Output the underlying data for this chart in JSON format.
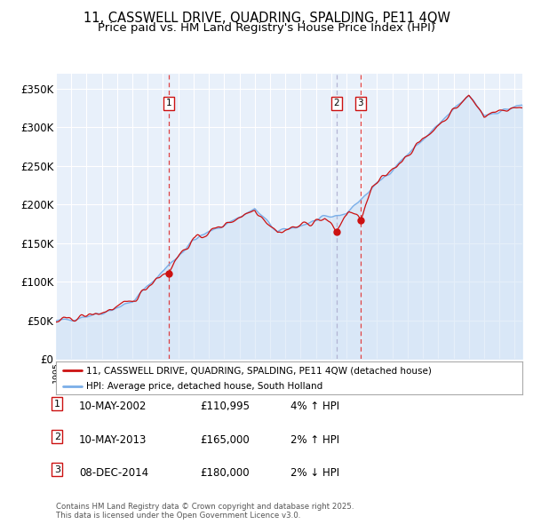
{
  "title": "11, CASSWELL DRIVE, QUADRING, SPALDING, PE11 4QW",
  "subtitle": "Price paid vs. HM Land Registry's House Price Index (HPI)",
  "ylabel_ticks": [
    "£0",
    "£50K",
    "£100K",
    "£150K",
    "£200K",
    "£250K",
    "£300K",
    "£350K"
  ],
  "ytick_values": [
    0,
    50000,
    100000,
    150000,
    200000,
    250000,
    300000,
    350000
  ],
  "ylim": [
    0,
    370000
  ],
  "xlim_start": 1995.0,
  "xlim_end": 2025.5,
  "sale_dates": [
    2002.37,
    2013.36,
    2014.92
  ],
  "sale_prices": [
    110995,
    165000,
    180000
  ],
  "sale_labels": [
    "1",
    "2",
    "3"
  ],
  "dashed_line_colors": [
    "#dd2222",
    "#aaaacc",
    "#dd2222"
  ],
  "dashed_line_styles": [
    "--",
    "--",
    "--"
  ],
  "hpi_line_color": "#7aaee8",
  "hpi_fill_color": "#cce0f5",
  "price_line_color": "#cc1111",
  "price_dot_color": "#cc1111",
  "plot_bg_color": "#e8f0fa",
  "legend_entries": [
    "11, CASSWELL DRIVE, QUADRING, SPALDING, PE11 4QW (detached house)",
    "HPI: Average price, detached house, South Holland"
  ],
  "table_rows": [
    {
      "label": "1",
      "date": "10-MAY-2002",
      "price": "£110,995",
      "change": "4% ↑ HPI"
    },
    {
      "label": "2",
      "date": "10-MAY-2013",
      "price": "£165,000",
      "change": "2% ↑ HPI"
    },
    {
      "label": "3",
      "date": "08-DEC-2014",
      "price": "£180,000",
      "change": "2% ↓ HPI"
    }
  ],
  "footnote": "Contains HM Land Registry data © Crown copyright and database right 2025.\nThis data is licensed under the Open Government Licence v3.0.",
  "bg_color": "#ffffff",
  "grid_color": "#cccccc",
  "title_fontsize": 10.5,
  "subtitle_fontsize": 9.5
}
